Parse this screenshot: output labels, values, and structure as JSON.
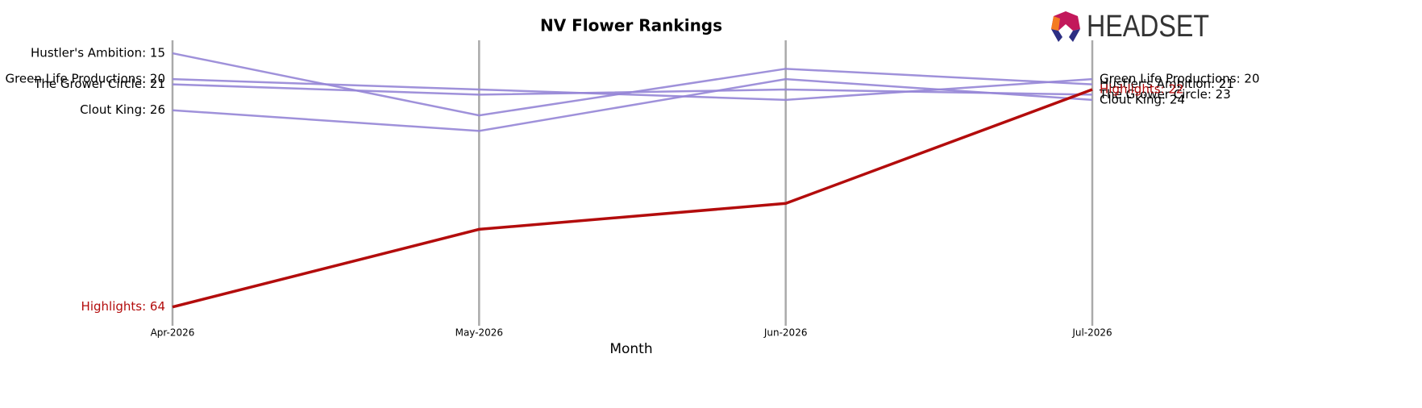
{
  "logo_text": "HEADSET",
  "chart_data": {
    "type": "bump",
    "title": "NV Flower Rankings",
    "x_label": "Month",
    "categories": [
      "Apr-2026",
      "May-2026",
      "Jun-2026",
      "Jul-2026"
    ],
    "ylim": [
      67,
      12.5
    ],
    "inverted_y": true,
    "series": [
      {
        "name": "Hustler's Ambition",
        "color": "#9585d6",
        "values": [
          15,
          27,
          18,
          21
        ],
        "value_labels": [
          "Hustler's Ambition: 15",
          null,
          null,
          "Hustler's Ambition: 21"
        ]
      },
      {
        "name": "Green Life Productions",
        "color": "#9585d6",
        "values": [
          20,
          22,
          24,
          20
        ],
        "value_labels": [
          "Green Life Productions: 20",
          null,
          null,
          "Green Life Productions: 20"
        ]
      },
      {
        "name": "The Grower Circle",
        "color": "#9585d6",
        "values": [
          21,
          23,
          22,
          23
        ],
        "value_labels": [
          "The Grower Circle: 21",
          null,
          null,
          "The Grower Circle: 23"
        ]
      },
      {
        "name": "Clout King",
        "color": "#9585d6",
        "values": [
          26,
          30,
          20,
          24
        ],
        "value_labels": [
          "Clout King: 26",
          null,
          null,
          "Clout King: 24"
        ]
      },
      {
        "name": "Highlights",
        "color": "#b30c0c",
        "highlight": true,
        "values": [
          64,
          49,
          44,
          22
        ],
        "value_labels": [
          "Highlights: 64",
          null,
          null,
          "Highlights: 22"
        ]
      }
    ]
  }
}
